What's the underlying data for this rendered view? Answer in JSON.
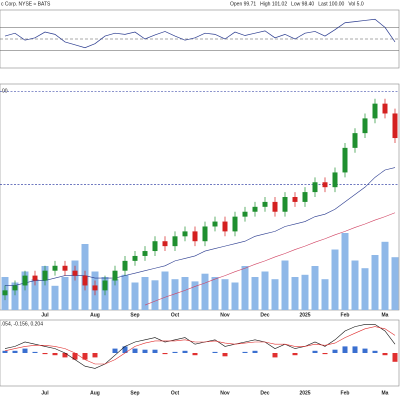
{
  "chart_data": {
    "type": "candlestick",
    "title": "c Corp. NYSE ≈ BATS",
    "quote": [
      "Open 99.71",
      "High 101.02",
      "Low 98.40",
      "Last 100.00",
      "Vol 5.0"
    ],
    "level_label": "00",
    "categories": [
      null,
      null,
      null,
      null,
      "Jul",
      null,
      null,
      null,
      null,
      "Aug",
      null,
      null,
      null,
      "Sep",
      null,
      null,
      null,
      "Oct",
      null,
      null,
      null,
      null,
      "Nov",
      null,
      null,
      null,
      "Dec",
      null,
      null,
      null,
      "2025",
      null,
      null,
      null,
      "Feb",
      null,
      null,
      null,
      "Ma",
      null
    ],
    "open": [
      65,
      66,
      67,
      69,
      68,
      70,
      71,
      70,
      69,
      67,
      66,
      68,
      70,
      72,
      73,
      74,
      76,
      75,
      77,
      78,
      76,
      79,
      80,
      78,
      81,
      82,
      83,
      84,
      82,
      85,
      84,
      86,
      88,
      87,
      90,
      95,
      98,
      101,
      104,
      102
    ],
    "high": [
      67,
      68,
      70,
      70,
      71,
      72,
      72,
      71,
      70,
      68,
      69,
      71,
      73,
      74,
      75,
      77,
      77,
      78,
      79,
      79,
      80,
      81,
      81,
      82,
      83,
      84,
      85,
      85,
      86,
      86,
      87,
      89,
      89,
      91,
      96,
      99,
      102,
      105,
      105,
      103
    ],
    "low": [
      64,
      65,
      66,
      67,
      67,
      69,
      69,
      68,
      66,
      65,
      65,
      67,
      69,
      71,
      72,
      73,
      74,
      74,
      76,
      75,
      75,
      78,
      77,
      77,
      80,
      81,
      82,
      81,
      81,
      83,
      83,
      85,
      86,
      86,
      89,
      94,
      97,
      100,
      101,
      96
    ],
    "close": [
      66,
      67,
      69,
      68,
      70,
      71,
      70,
      69,
      67,
      66,
      68,
      70,
      72,
      73,
      74,
      76,
      75,
      77,
      78,
      76,
      79,
      80,
      78,
      81,
      82,
      83,
      84,
      82,
      85,
      84,
      86,
      88,
      87,
      90,
      95,
      98,
      101,
      104,
      102,
      97
    ],
    "up_color": "#1f8f2f",
    "down_color": "#d42020",
    "ylim": [
      62,
      108
    ],
    "levels": [
      106.5,
      87.5
    ],
    "volume": [
      30,
      25,
      35,
      28,
      40,
      22,
      30,
      45,
      60,
      35,
      30,
      28,
      32,
      25,
      30,
      27,
      35,
      28,
      30,
      26,
      33,
      30,
      28,
      25,
      40,
      30,
      35,
      28,
      45,
      30,
      32,
      40,
      28,
      55,
      70,
      45,
      38,
      50,
      62,
      48
    ],
    "volume_color": "#8fb8e8",
    "volume_lim": [
      0,
      100
    ],
    "lines": [
      {
        "color": "#2a3b8f",
        "values": [
          67,
          67,
          67.5,
          68,
          68,
          68.5,
          69,
          69,
          69,
          68.5,
          68.5,
          68.5,
          69,
          69.5,
          70,
          70.5,
          71,
          72,
          72.5,
          73,
          74,
          74.5,
          75,
          75.5,
          76,
          77,
          77.5,
          78,
          79,
          79.5,
          80,
          81,
          81.5,
          82.5,
          84,
          85.5,
          87,
          89,
          90.5,
          91
        ]
      },
      {
        "color": "#d04060",
        "values": [
          null,
          null,
          null,
          null,
          null,
          null,
          null,
          null,
          null,
          null,
          null,
          null,
          null,
          null,
          63,
          63.8,
          64.6,
          65.3,
          66,
          66.8,
          67.5,
          68.3,
          69,
          69.8,
          70.5,
          71.3,
          72,
          72.8,
          73.5,
          74.3,
          75,
          75.8,
          76.5,
          77.3,
          78,
          78.8,
          79.5,
          80.3,
          81,
          81.8
        ]
      }
    ],
    "rsi": {
      "color": "#2a3b8f",
      "ylim": [
        0,
        100
      ],
      "yticks": [
        30,
        50,
        70
      ],
      "values": [
        55,
        60,
        48,
        52,
        62,
        58,
        45,
        40,
        35,
        42,
        55,
        60,
        58,
        62,
        50,
        57,
        63,
        55,
        48,
        52,
        60,
        58,
        50,
        62,
        56,
        60,
        64,
        52,
        58,
        50,
        60,
        63,
        55,
        66,
        78,
        80,
        82,
        84,
        70,
        45
      ]
    },
    "macd": {
      "label": ".054, -0.156, 0.204",
      "ylim": [
        -1.5,
        1.5
      ],
      "macd": [
        0.2,
        0.3,
        0.5,
        0.4,
        0.3,
        0.2,
        0,
        -0.3,
        -0.6,
        -0.7,
        -0.5,
        -0.1,
        0.3,
        0.5,
        0.6,
        0.7,
        0.5,
        0.6,
        0.7,
        0.4,
        0.5,
        0.6,
        0.3,
        0.4,
        0.5,
        0.6,
        0.5,
        0.2,
        0.4,
        0.2,
        0.3,
        0.5,
        0.3,
        0.6,
        1.0,
        1.2,
        1.3,
        1.3,
        1.0,
        0.4
      ],
      "signal": [
        0.1,
        0.2,
        0.3,
        0.35,
        0.35,
        0.3,
        0.2,
        0,
        -0.3,
        -0.5,
        -0.5,
        -0.3,
        0,
        0.3,
        0.45,
        0.55,
        0.55,
        0.55,
        0.6,
        0.5,
        0.5,
        0.55,
        0.45,
        0.4,
        0.45,
        0.5,
        0.5,
        0.4,
        0.4,
        0.3,
        0.3,
        0.4,
        0.35,
        0.45,
        0.7,
        0.9,
        1.1,
        1.2,
        1.1,
        0.8
      ],
      "histogram": [
        0.1,
        0.1,
        0.2,
        0.05,
        -0.05,
        -0.1,
        -0.2,
        -0.3,
        -0.3,
        -0.2,
        0,
        0.2,
        0.3,
        0.2,
        0.15,
        0.15,
        -0.05,
        0.05,
        0.1,
        -0.1,
        0,
        0.05,
        -0.15,
        0,
        0.05,
        0.1,
        0,
        -0.2,
        0,
        -0.1,
        0,
        0.1,
        -0.05,
        0.15,
        0.3,
        0.3,
        0.2,
        0.1,
        -0.1,
        -0.4
      ],
      "macd_color": "#111111",
      "signal_color": "#e03030",
      "pos_color": "#3a6fd0",
      "neg_color": "#e03030"
    }
  }
}
